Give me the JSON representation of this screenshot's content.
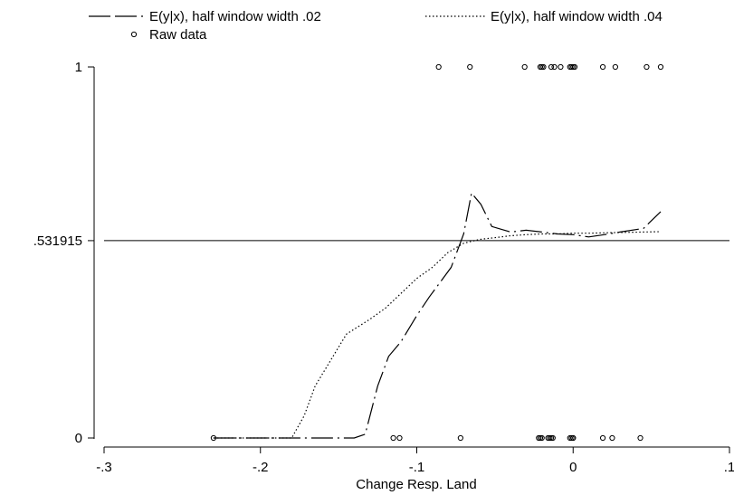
{
  "chart_data": {
    "type": "line",
    "title": "",
    "xlabel": "Change Resp. Land",
    "ylabel": "",
    "xlim": [
      -0.3,
      0.1
    ],
    "ylim": [
      0,
      1
    ],
    "x_ticks": [
      {
        "value": -0.3,
        "label": "-.3"
      },
      {
        "value": -0.2,
        "label": "-.2"
      },
      {
        "value": -0.1,
        "label": "-.1"
      },
      {
        "value": 0.0,
        "label": "0"
      },
      {
        "value": 0.1,
        "label": ".1"
      }
    ],
    "y_ticks": [
      {
        "value": 0,
        "label": "0"
      },
      {
        "value": 0.531915,
        "label": ".531915"
      },
      {
        "value": 1,
        "label": "1"
      }
    ],
    "reference_line": {
      "y": 0.531915
    },
    "grid": false,
    "legend_position": "top",
    "legend": [
      {
        "label": "E(y|x), half window width .02",
        "style": "long-dash"
      },
      {
        "label": "E(y|x), half window width .04",
        "style": "dotted"
      },
      {
        "label": "Raw data",
        "style": "circle"
      }
    ],
    "series": [
      {
        "name": "E(y|x), half window width .02",
        "style": "long-dash",
        "x": [
          -0.23,
          -0.17,
          -0.15,
          -0.14,
          -0.133,
          -0.125,
          -0.118,
          -0.11,
          -0.1,
          -0.092,
          -0.085,
          -0.078,
          -0.07,
          -0.065,
          -0.059,
          -0.052,
          -0.04,
          -0.03,
          -0.02,
          -0.01,
          0.0,
          0.01,
          0.02,
          0.03,
          0.045,
          0.056
        ],
        "y": [
          0,
          0,
          0,
          0,
          0.01,
          0.14,
          0.22,
          0.26,
          0.33,
          0.38,
          0.42,
          0.46,
          0.55,
          0.66,
          0.63,
          0.57,
          0.555,
          0.56,
          0.555,
          0.55,
          0.548,
          0.542,
          0.548,
          0.555,
          0.565,
          0.61
        ]
      },
      {
        "name": "E(y|x), half window width .04",
        "style": "dotted",
        "x": [
          -0.23,
          -0.2,
          -0.18,
          -0.172,
          -0.165,
          -0.155,
          -0.145,
          -0.13,
          -0.12,
          -0.11,
          -0.1,
          -0.09,
          -0.08,
          -0.07,
          -0.06,
          -0.05,
          -0.04,
          -0.03,
          -0.02,
          -0.01,
          0.0,
          0.01,
          0.02,
          0.03,
          0.045,
          0.056
        ],
        "y": [
          0,
          0,
          0,
          0.06,
          0.14,
          0.21,
          0.28,
          0.32,
          0.35,
          0.39,
          0.43,
          0.46,
          0.5,
          0.525,
          0.535,
          0.54,
          0.545,
          0.548,
          0.55,
          0.55,
          0.552,
          0.552,
          0.553,
          0.554,
          0.555,
          0.556
        ]
      }
    ],
    "raw_data": {
      "name": "Raw data",
      "ones_x": [
        -0.086,
        -0.066,
        -0.031,
        -0.021,
        -0.02,
        -0.019,
        -0.014,
        -0.012,
        -0.008,
        -0.002,
        -0.001,
        0.0,
        0.001,
        0.019,
        0.027,
        0.047,
        0.056
      ],
      "zeros_x": [
        -0.23,
        -0.115,
        -0.111,
        -0.072,
        -0.022,
        -0.021,
        -0.02,
        -0.016,
        -0.015,
        -0.014,
        -0.013,
        -0.002,
        -0.001,
        0.0,
        0.0,
        0.019,
        0.025,
        0.043
      ]
    }
  }
}
